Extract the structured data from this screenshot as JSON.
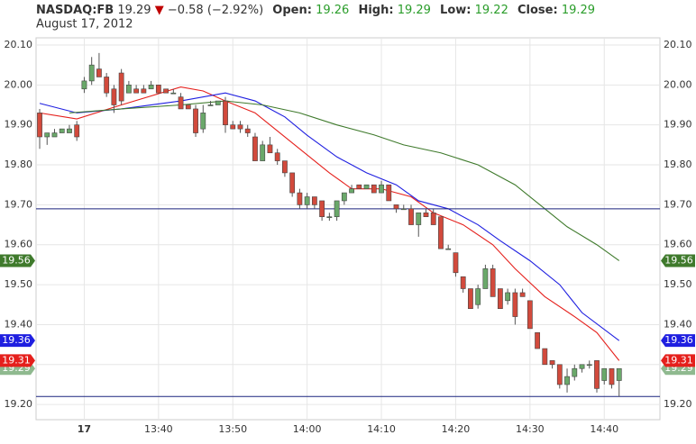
{
  "chart_data": {
    "type": "candlestick",
    "header": {
      "symbol": "NASDAQ:FB",
      "last": 19.29,
      "arrow": "▼",
      "change": "−0.58 (−2.92%)",
      "open_label": "Open:",
      "open": 19.26,
      "high_label": "High:",
      "high": 19.29,
      "low_label": "Low:",
      "low": 19.22,
      "close_label": "Close:",
      "close": 19.29,
      "date": "August 17, 2012",
      "value_color": "#2a9d2a",
      "arrow_color": "#c00000"
    },
    "x": [
      "13:24",
      "13:25",
      "13:26",
      "13:27",
      "13:28",
      "13:29",
      "13:30",
      "13:31",
      "13:32",
      "13:33",
      "13:34",
      "13:35",
      "13:36",
      "13:37",
      "13:38",
      "13:39",
      "13:40",
      "13:41",
      "13:42",
      "13:43",
      "13:44",
      "13:45",
      "13:46",
      "13:47",
      "13:48",
      "13:49",
      "13:50",
      "13:51",
      "13:52",
      "13:53",
      "13:54",
      "13:55",
      "13:56",
      "13:57",
      "13:58",
      "13:59",
      "14:00",
      "14:01",
      "14:02",
      "14:03",
      "14:04",
      "14:05",
      "14:06",
      "14:07",
      "14:08",
      "14:09",
      "14:10",
      "14:11",
      "14:12",
      "14:13",
      "14:14",
      "14:15",
      "14:16",
      "14:17",
      "14:18",
      "14:19",
      "14:20",
      "14:21",
      "14:22",
      "14:23",
      "14:24",
      "14:25",
      "14:26",
      "14:27",
      "14:28",
      "14:29",
      "14:30",
      "14:31",
      "14:32",
      "14:33",
      "14:34",
      "14:35",
      "14:36",
      "14:37",
      "14:38",
      "14:39",
      "14:40",
      "14:41",
      "14:42"
    ],
    "open": [
      19.93,
      19.87,
      19.87,
      19.88,
      19.88,
      19.9,
      19.99,
      20.01,
      20.04,
      20.02,
      19.99,
      20.03,
      19.98,
      19.99,
      19.99,
      19.99,
      20.0,
      19.99,
      19.98,
      19.97,
      19.95,
      19.94,
      19.89,
      19.95,
      19.95,
      19.96,
      19.9,
      19.9,
      19.89,
      19.87,
      19.81,
      19.85,
      19.83,
      19.81,
      19.78,
      19.73,
      19.7,
      19.72,
      19.71,
      19.67,
      19.67,
      19.71,
      19.73,
      19.75,
      19.74,
      19.75,
      19.73,
      19.75,
      19.7,
      19.69,
      19.69,
      19.65,
      19.68,
      19.68,
      19.67,
      19.59,
      19.58,
      19.52,
      19.49,
      19.45,
      19.49,
      19.54,
      19.49,
      19.46,
      19.48,
      19.48,
      19.46,
      19.38,
      19.34,
      19.31,
      19.3,
      19.25,
      19.27,
      19.29,
      19.3,
      19.31,
      19.26,
      19.29,
      19.26
    ],
    "high": [
      19.94,
      19.88,
      19.89,
      19.89,
      19.9,
      19.91,
      20.02,
      20.07,
      20.08,
      20.03,
      20.0,
      20.04,
      20.01,
      20.0,
      20.0,
      20.01,
      20.0,
      19.99,
      19.99,
      19.98,
      19.95,
      19.95,
      19.95,
      19.96,
      19.96,
      19.97,
      19.91,
      19.91,
      19.9,
      19.88,
      19.86,
      19.87,
      19.84,
      19.81,
      19.78,
      19.74,
      19.73,
      19.72,
      19.71,
      19.68,
      19.71,
      19.73,
      19.75,
      19.75,
      19.75,
      19.75,
      19.76,
      19.75,
      19.7,
      19.7,
      19.7,
      19.68,
      19.69,
      19.69,
      19.67,
      19.6,
      19.58,
      19.52,
      19.49,
      19.5,
      19.55,
      19.55,
      19.49,
      19.49,
      19.49,
      19.49,
      19.46,
      19.38,
      19.34,
      19.31,
      19.3,
      19.29,
      19.3,
      19.3,
      19.31,
      19.31,
      19.29,
      19.29,
      19.29
    ],
    "low": [
      19.84,
      19.85,
      19.87,
      19.88,
      19.88,
      19.86,
      19.98,
      20.0,
      20.02,
      19.97,
      19.93,
      19.95,
      19.98,
      19.98,
      19.98,
      19.99,
      19.98,
      19.98,
      19.98,
      19.94,
      19.94,
      19.87,
      19.88,
      19.95,
      19.95,
      19.88,
      19.89,
      19.88,
      19.87,
      19.81,
      19.81,
      19.83,
      19.8,
      19.77,
      19.72,
      19.69,
      19.69,
      19.69,
      19.66,
      19.66,
      19.66,
      19.7,
      19.73,
      19.74,
      19.74,
      19.73,
      19.73,
      19.71,
      19.68,
      19.69,
      19.65,
      19.62,
      19.67,
      19.65,
      19.59,
      19.59,
      19.52,
      19.48,
      19.44,
      19.44,
      19.49,
      19.47,
      19.44,
      19.45,
      19.4,
      19.47,
      19.39,
      19.34,
      19.3,
      19.29,
      19.24,
      19.23,
      19.26,
      19.28,
      19.29,
      19.23,
      19.25,
      19.24,
      19.22
    ],
    "close": [
      19.87,
      19.88,
      19.88,
      19.89,
      19.89,
      19.87,
      20.01,
      20.05,
      20.02,
      19.98,
      19.95,
      19.96,
      20.0,
      19.98,
      19.98,
      20.0,
      19.98,
      19.98,
      19.98,
      19.94,
      19.94,
      19.88,
      19.93,
      19.95,
      19.96,
      19.9,
      19.89,
      19.89,
      19.88,
      19.81,
      19.85,
      19.83,
      19.81,
      19.78,
      19.73,
      19.7,
      19.72,
      19.7,
      19.67,
      19.67,
      19.71,
      19.73,
      19.74,
      19.74,
      19.75,
      19.73,
      19.75,
      19.71,
      19.69,
      19.69,
      19.65,
      19.68,
      19.67,
      19.65,
      19.59,
      19.59,
      19.53,
      19.49,
      19.44,
      19.49,
      19.54,
      19.47,
      19.44,
      19.48,
      19.42,
      19.47,
      19.39,
      19.34,
      19.3,
      19.3,
      19.25,
      19.27,
      19.29,
      19.3,
      19.3,
      19.24,
      19.29,
      19.25,
      19.29
    ],
    "up_color": "#6aa86a",
    "down_color": "#d24a3c",
    "overlays": [
      {
        "color": "#e5201c",
        "x": [
          "13:24",
          "13:29",
          "13:35",
          "13:43",
          "13:46",
          "13:49",
          "13:53",
          "13:55",
          "13:59",
          "14:03",
          "14:06",
          "14:10",
          "14:14",
          "14:17",
          "14:21",
          "14:25",
          "14:28",
          "14:32",
          "14:36",
          "14:39",
          "14:42"
        ],
        "values": [
          19.93,
          19.915,
          19.95,
          19.995,
          19.985,
          19.96,
          19.93,
          19.9,
          19.84,
          19.78,
          19.74,
          19.74,
          19.72,
          19.68,
          19.65,
          19.6,
          19.54,
          19.47,
          19.42,
          19.38,
          19.31
        ]
      },
      {
        "color": "#1f1fe0",
        "x": [
          "13:24",
          "13:29",
          "13:35",
          "13:43",
          "13:49",
          "13:53",
          "13:57",
          "14:00",
          "14:04",
          "14:08",
          "14:12",
          "14:15",
          "14:19",
          "14:23",
          "14:26",
          "14:30",
          "14:34",
          "14:37",
          "14:42"
        ],
        "values": [
          19.954,
          19.93,
          19.94,
          19.96,
          19.98,
          19.96,
          19.92,
          19.874,
          19.82,
          19.78,
          19.75,
          19.71,
          19.69,
          19.65,
          19.61,
          19.56,
          19.5,
          19.43,
          19.36
        ]
      },
      {
        "color": "#3f7a2c",
        "x": [
          "13:28",
          "13:35",
          "13:43",
          "13:49",
          "13:54",
          "13:59",
          "14:04",
          "14:09",
          "14:13",
          "14:18",
          "14:23",
          "14:28",
          "14:32",
          "14:35",
          "14:39",
          "14:42"
        ],
        "values": [
          19.93,
          19.94,
          19.95,
          19.96,
          19.95,
          19.93,
          19.9,
          19.875,
          19.85,
          19.83,
          19.8,
          19.75,
          19.69,
          19.645,
          19.6,
          19.56
        ]
      }
    ],
    "hlines": [
      19.69,
      19.22
    ],
    "hline_color": "#1a237e",
    "price_tags": [
      {
        "value": 19.56,
        "color": "#3f7a2c"
      },
      {
        "value": 19.36,
        "color": "#1f1fe0"
      },
      {
        "value": 19.29,
        "color": "#8fb98f"
      },
      {
        "value": 19.31,
        "color": "#e5201c"
      }
    ],
    "ylim": [
      19.162,
      20.118
    ],
    "yticks": [
      {
        "value": 20.1,
        "label": "20.10"
      },
      {
        "value": 20.0,
        "label": "20.00"
      },
      {
        "value": 19.9,
        "label": "19.90"
      },
      {
        "value": 19.8,
        "label": "19.80"
      },
      {
        "value": 19.7,
        "label": "19.70"
      },
      {
        "value": 19.6,
        "label": "19.60"
      },
      {
        "value": 19.5,
        "label": "19.50"
      },
      {
        "value": 19.4,
        "label": "19.40"
      },
      {
        "value": 19.3,
        "label": "19.30"
      },
      {
        "value": 19.2,
        "label": "19.20"
      }
    ],
    "xticks": [
      {
        "value": "13:30",
        "label": "17"
      },
      "13:40",
      "13:50",
      "14:00",
      "14:10",
      "14:20",
      "14:30",
      "14:40"
    ],
    "grid": true
  }
}
